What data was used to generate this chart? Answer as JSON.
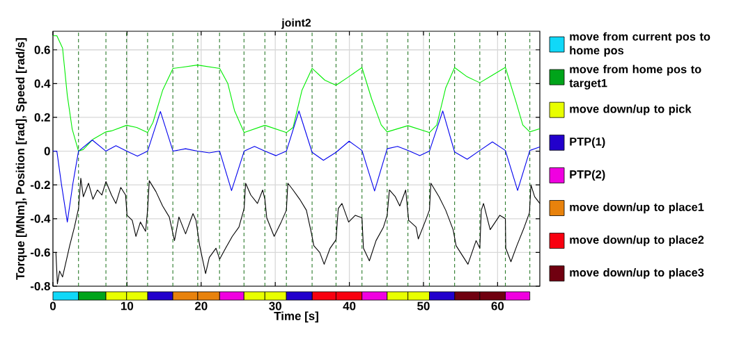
{
  "chart_data": [
    {
      "type": "line",
      "title": "joint2",
      "ylabel": "Torque [MNm], Position [rad], Speed [rad/s]",
      "xlim": [
        0,
        65.7
      ],
      "ylim": [
        -0.8,
        0.71
      ],
      "xticks": [
        0,
        10,
        20,
        30,
        40,
        50,
        60
      ],
      "yticks": [
        -0.8,
        -0.6,
        -0.4,
        -0.2,
        0,
        0.2,
        0.4,
        0.6
      ],
      "grid": true,
      "tick_labels": "y",
      "series": [
        {
          "color": "#00ee00",
          "x": [
            0,
            0.53,
            1.3,
            1.94,
            2.6,
            3.45,
            4.1,
            5.4,
            7.15,
            7.9,
            9.94,
            11.3,
            12.77,
            13.5,
            14.8,
            16.2,
            17.3,
            19.5,
            22.5,
            23.6,
            24.5,
            25.8,
            28.6,
            31.5,
            32.4,
            33.6,
            34.97,
            36.7,
            38.2,
            39.9,
            41.7,
            43.0,
            44.3,
            45.1,
            47.9,
            50.8,
            51.8,
            53.0,
            54.2,
            55.9,
            57.6,
            59.3,
            61.05,
            62.5,
            63.4,
            64.35,
            65.7
          ],
          "values": [
            0.683,
            0.683,
            0.61,
            0.33,
            0.13,
            0.0,
            0.01,
            0.07,
            0.114,
            0.12,
            0.153,
            0.14,
            0.11,
            0.17,
            0.36,
            0.49,
            0.496,
            0.51,
            0.49,
            0.4,
            0.24,
            0.11,
            0.153,
            0.11,
            0.14,
            0.36,
            0.49,
            0.42,
            0.39,
            0.44,
            0.495,
            0.31,
            0.155,
            0.114,
            0.151,
            0.11,
            0.155,
            0.375,
            0.495,
            0.44,
            0.405,
            0.45,
            0.496,
            0.29,
            0.155,
            0.114,
            0.133
          ]
        },
        {
          "color": "#0000ee",
          "x": [
            0,
            0.53,
            1.16,
            1.94,
            2.7,
            3.45,
            5.3,
            7.15,
            8.5,
            9.94,
            11.4,
            12.77,
            14.5,
            16.2,
            17.9,
            19.5,
            21.1,
            22.5,
            24.1,
            25.8,
            27.2,
            28.6,
            30.1,
            31.5,
            33.2,
            34.97,
            36.5,
            38.2,
            39.97,
            41.7,
            43.4,
            45.1,
            46.5,
            47.9,
            49.5,
            50.8,
            52.6,
            54.2,
            55.9,
            57.6,
            59.3,
            61.05,
            62.7,
            64.35,
            65.7
          ],
          "values": [
            0,
            0,
            -0.2,
            -0.42,
            -0.19,
            0,
            0.066,
            0,
            0.032,
            0,
            -0.03,
            0,
            0.235,
            0,
            0.014,
            0,
            -0.01,
            0,
            -0.234,
            0,
            0.028,
            0,
            -0.027,
            0,
            0.238,
            -0.007,
            -0.054,
            -0.007,
            0.059,
            0.004,
            -0.236,
            0.014,
            0.028,
            0.004,
            -0.027,
            0,
            0.238,
            -0.005,
            -0.048,
            0.004,
            0.055,
            0.004,
            -0.233,
            0.004,
            0.025
          ]
        },
        {
          "color": "#000000",
          "x": [
            0.4,
            0.6,
            0.9,
            1.3,
            1.9,
            2.26,
            2.9,
            3.45,
            3.76,
            4.1,
            4.8,
            5.4,
            6.0,
            6.6,
            7.15,
            7.9,
            8.5,
            9.15,
            9.8,
            10.0,
            10.7,
            11.2,
            11.8,
            12.5,
            12.77,
            13.0,
            13.9,
            14.8,
            15.7,
            16.4,
            17.0,
            17.9,
            18.9,
            19.3,
            19.8,
            20.6,
            21.1,
            22.0,
            22.5,
            23.3,
            24.2,
            25.1,
            25.8,
            26.0,
            26.7,
            27.6,
            28.3,
            28.6,
            28.85,
            29.85,
            30.8,
            31.5,
            31.7,
            32.4,
            33.3,
            34.2,
            34.9,
            35.2,
            36.0,
            36.6,
            37.4,
            38.2,
            38.5,
            39.0,
            39.9,
            40.8,
            41.7,
            41.9,
            42.7,
            43.6,
            44.6,
            45.1,
            45.4,
            46.2,
            46.8,
            47.6,
            48.0,
            49.0,
            49.3,
            50.2,
            50.8,
            51.0,
            52.1,
            53.0,
            54.0,
            54.4,
            55.2,
            56.0,
            57.1,
            57.6,
            57.8,
            58.1,
            59.0,
            60.3,
            61.05,
            61.1,
            61.8,
            62.6,
            63.6,
            64.3,
            64.5,
            65.0,
            65.7
          ],
          "values": [
            -0.6,
            -0.786,
            -0.71,
            -0.745,
            -0.63,
            -0.56,
            -0.45,
            -0.34,
            -0.16,
            -0.27,
            -0.19,
            -0.285,
            -0.23,
            -0.26,
            -0.18,
            -0.26,
            -0.31,
            -0.215,
            -0.26,
            -0.38,
            -0.41,
            -0.505,
            -0.42,
            -0.475,
            -0.35,
            -0.175,
            -0.24,
            -0.325,
            -0.39,
            -0.53,
            -0.39,
            -0.49,
            -0.37,
            -0.41,
            -0.56,
            -0.725,
            -0.63,
            -0.575,
            -0.64,
            -0.575,
            -0.505,
            -0.45,
            -0.34,
            -0.19,
            -0.26,
            -0.31,
            -0.23,
            -0.285,
            -0.395,
            -0.505,
            -0.42,
            -0.35,
            -0.19,
            -0.23,
            -0.285,
            -0.35,
            -0.49,
            -0.56,
            -0.6,
            -0.67,
            -0.575,
            -0.525,
            -0.34,
            -0.31,
            -0.42,
            -0.38,
            -0.395,
            -0.575,
            -0.65,
            -0.53,
            -0.45,
            -0.38,
            -0.23,
            -0.27,
            -0.325,
            -0.23,
            -0.41,
            -0.45,
            -0.52,
            -0.42,
            -0.35,
            -0.19,
            -0.27,
            -0.35,
            -0.465,
            -0.56,
            -0.615,
            -0.67,
            -0.53,
            -0.575,
            -0.35,
            -0.31,
            -0.465,
            -0.38,
            -0.4,
            -0.575,
            -0.655,
            -0.56,
            -0.45,
            -0.365,
            -0.2,
            -0.27,
            -0.31
          ]
        }
      ],
      "ref_lines": [
        {
          "axis": "x",
          "value": 3.45,
          "color": "#2a7a2a",
          "line_style": "dashed"
        },
        {
          "axis": "x",
          "value": 7.15,
          "color": "#2a7a2a",
          "line_style": "dashed"
        },
        {
          "axis": "x",
          "value": 9.94,
          "color": "#2a7a2a",
          "line_style": "dashed"
        },
        {
          "axis": "x",
          "value": 12.77,
          "color": "#2a7a2a",
          "line_style": "dashed"
        },
        {
          "axis": "x",
          "value": 16.18,
          "color": "#2a7a2a",
          "line_style": "dashed"
        },
        {
          "axis": "x",
          "value": 19.54,
          "color": "#2a7a2a",
          "line_style": "dashed"
        },
        {
          "axis": "x",
          "value": 22.48,
          "color": "#2a7a2a",
          "line_style": "dashed"
        },
        {
          "axis": "x",
          "value": 25.78,
          "color": "#2a7a2a",
          "line_style": "dashed"
        },
        {
          "axis": "x",
          "value": 28.6,
          "color": "#2a7a2a",
          "line_style": "dashed"
        },
        {
          "axis": "x",
          "value": 31.5,
          "color": "#2a7a2a",
          "line_style": "dashed"
        },
        {
          "axis": "x",
          "value": 34.97,
          "color": "#2a7a2a",
          "line_style": "dashed"
        },
        {
          "axis": "x",
          "value": 38.2,
          "color": "#2a7a2a",
          "line_style": "dashed"
        },
        {
          "axis": "x",
          "value": 41.7,
          "color": "#2a7a2a",
          "line_style": "dashed"
        },
        {
          "axis": "x",
          "value": 45.1,
          "color": "#2a7a2a",
          "line_style": "dashed"
        },
        {
          "axis": "x",
          "value": 47.9,
          "color": "#2a7a2a",
          "line_style": "dashed"
        },
        {
          "axis": "x",
          "value": 50.8,
          "color": "#2a7a2a",
          "line_style": "dashed"
        },
        {
          "axis": "x",
          "value": 54.2,
          "color": "#2a7a2a",
          "line_style": "dashed"
        },
        {
          "axis": "x",
          "value": 57.6,
          "color": "#2a7a2a",
          "line_style": "dashed"
        },
        {
          "axis": "x",
          "value": 61.05,
          "color": "#2a7a2a",
          "line_style": "dashed"
        },
        {
          "axis": "x",
          "value": 64.35,
          "color": "#2a7a2a",
          "line_style": "dashed"
        }
      ]
    },
    {
      "type": "bar",
      "orientation": "horizontal",
      "xlabel": "Time [s]",
      "categories": [
        null
      ],
      "xlim": [
        0,
        65.7
      ],
      "xticks": [
        0,
        10,
        20,
        30,
        40,
        50,
        60
      ],
      "tick_labels": "x",
      "legend": "right",
      "series": [
        {
          "name": "move from current pos to home pos",
          "color": "#10d8f8",
          "base": [
            0
          ],
          "values": [
            3.45
          ]
        },
        {
          "name": "move from home pos to target1",
          "color": "#00a41a",
          "base": [
            3.45
          ],
          "values": [
            3.7
          ]
        },
        {
          "name": "move down/up to pick",
          "color": "#e8ff00",
          "base": [
            7.15
          ],
          "values": [
            2.79
          ]
        },
        {
          "name": "PTP(1)",
          "color": "#2200cc",
          "base": [
            12.77
          ],
          "values": [
            3.41
          ]
        },
        {
          "name": "PTP(2)",
          "color": "#f000e0",
          "base": [
            22.48
          ],
          "values": [
            3.3
          ]
        },
        {
          "name": "move down/up to place1",
          "color": "#e8820c",
          "base": [
            16.18
          ],
          "values": [
            3.36
          ]
        },
        {
          "name": "move down/up to place2",
          "color": "#f80010",
          "base": [
            34.97
          ],
          "values": [
            3.23
          ]
        },
        {
          "name": "move down/up to place3",
          "color": "#700010",
          "base": [
            54.2
          ],
          "values": [
            3.4
          ]
        },
        {
          "color": "#e8ff00",
          "base": [
            9.94
          ],
          "values": [
            2.83
          ]
        },
        {
          "color": "#e8820c",
          "base": [
            19.54
          ],
          "values": [
            2.94
          ]
        },
        {
          "color": "#e8ff00",
          "base": [
            25.78
          ],
          "values": [
            2.82
          ]
        },
        {
          "color": "#e8ff00",
          "base": [
            28.6
          ],
          "values": [
            2.9
          ]
        },
        {
          "color": "#2200cc",
          "base": [
            31.5
          ],
          "values": [
            3.47
          ]
        },
        {
          "color": "#f80010",
          "base": [
            38.2
          ],
          "values": [
            3.5
          ]
        },
        {
          "color": "#f000e0",
          "base": [
            41.7
          ],
          "values": [
            3.4
          ]
        },
        {
          "color": "#e8ff00",
          "base": [
            45.1
          ],
          "values": [
            2.8
          ]
        },
        {
          "color": "#e8ff00",
          "base": [
            47.9
          ],
          "values": [
            2.9
          ]
        },
        {
          "color": "#2200cc",
          "base": [
            50.8
          ],
          "values": [
            3.4
          ]
        },
        {
          "color": "#700010",
          "base": [
            57.6
          ],
          "values": [
            3.45
          ]
        },
        {
          "color": "#f000e0",
          "base": [
            61.05
          ],
          "values": [
            3.3
          ]
        }
      ]
    }
  ]
}
